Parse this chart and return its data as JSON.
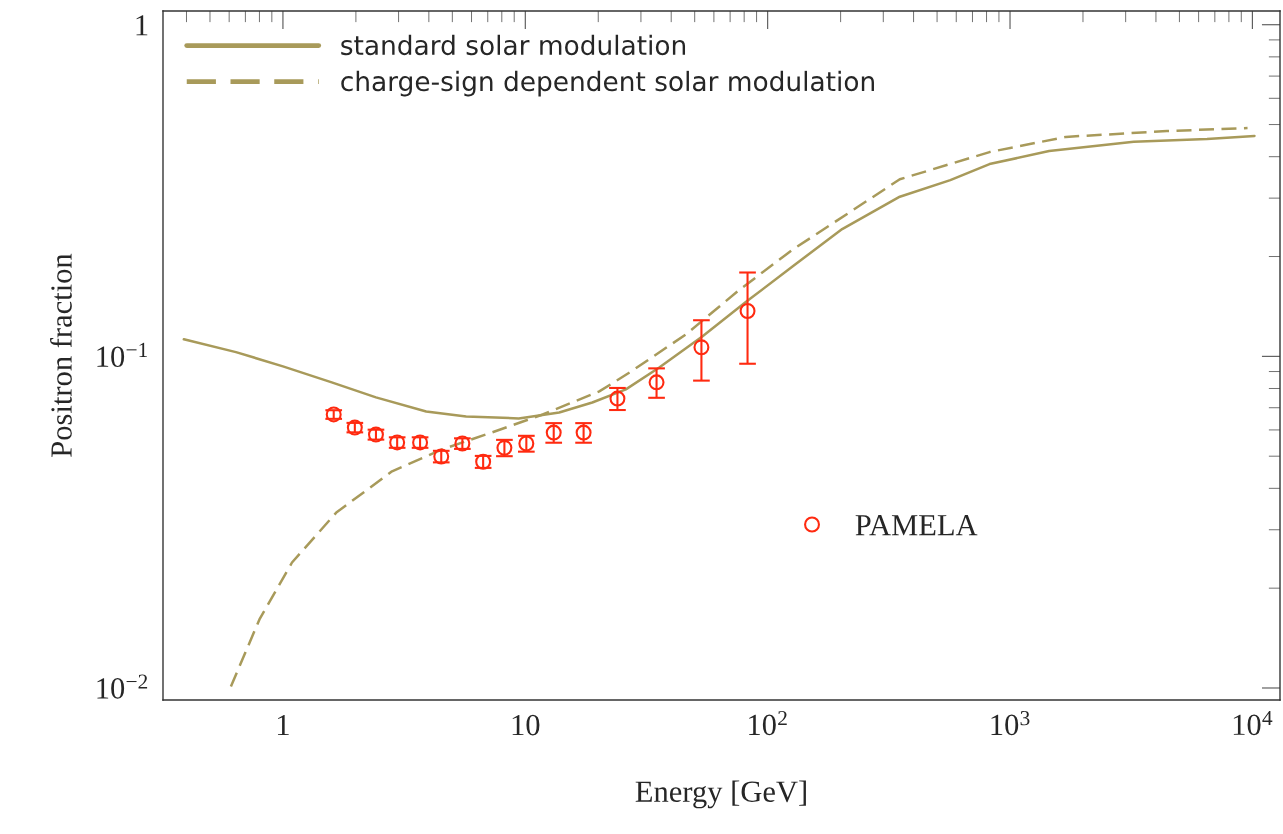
{
  "chart_data": {
    "type": "line",
    "xlabel": "Energy [GeV]",
    "ylabel": "Positron fraction",
    "log": "xy",
    "grid": false,
    "legend": "top left",
    "xlim": [
      0.32,
      13000
    ],
    "ylim": [
      0.0092,
      1.1
    ],
    "xticks": [
      {
        "value": 0.4,
        "label": null
      },
      {
        "value": 0.5,
        "label": null
      },
      {
        "value": 0.6,
        "label": null
      },
      {
        "value": 0.7,
        "label": null
      },
      {
        "value": 0.8,
        "label": null
      },
      {
        "value": 0.9,
        "label": null
      },
      1,
      {
        "value": 2,
        "label": null
      },
      {
        "value": 3,
        "label": null
      },
      {
        "value": 4,
        "label": null
      },
      {
        "value": 5,
        "label": null
      },
      {
        "value": 6,
        "label": null
      },
      {
        "value": 7,
        "label": null
      },
      {
        "value": 8,
        "label": null
      },
      {
        "value": 9,
        "label": null
      },
      10,
      {
        "value": 20,
        "label": null
      },
      {
        "value": 30,
        "label": null
      },
      {
        "value": 40,
        "label": null
      },
      {
        "value": 50,
        "label": null
      },
      {
        "value": 60,
        "label": null
      },
      {
        "value": 70,
        "label": null
      },
      {
        "value": 80,
        "label": null
      },
      {
        "value": 90,
        "label": null
      },
      {
        "value": 100,
        "label": "10$^{2}$"
      },
      {
        "value": 200,
        "label": null
      },
      {
        "value": 300,
        "label": null
      },
      {
        "value": 400,
        "label": null
      },
      {
        "value": 500,
        "label": null
      },
      {
        "value": 600,
        "label": null
      },
      {
        "value": 700,
        "label": null
      },
      {
        "value": 800,
        "label": null
      },
      {
        "value": 900,
        "label": null
      },
      {
        "value": 1000,
        "label": "10$^{3}$"
      },
      {
        "value": 2000,
        "label": null
      },
      {
        "value": 3000,
        "label": null
      },
      {
        "value": 4000,
        "label": null
      },
      {
        "value": 5000,
        "label": null
      },
      {
        "value": 6000,
        "label": null
      },
      {
        "value": 7000,
        "label": null
      },
      {
        "value": 8000,
        "label": null
      },
      {
        "value": 9000,
        "label": null
      },
      {
        "value": 10000,
        "label": "10$^{4}$"
      }
    ],
    "yticks": [
      {
        "value": 0.01,
        "label": "10$^{−2}$"
      },
      {
        "value": 0.02,
        "label": null
      },
      {
        "value": 0.03,
        "label": null
      },
      {
        "value": 0.04,
        "label": null
      },
      {
        "value": 0.05,
        "label": null
      },
      {
        "value": 0.06,
        "label": null
      },
      {
        "value": 0.07,
        "label": null
      },
      {
        "value": 0.08,
        "label": null
      },
      {
        "value": 0.09,
        "label": null
      },
      {
        "value": 0.1,
        "label": "10$^{−1}$"
      },
      {
        "value": 0.2,
        "label": null
      },
      {
        "value": 0.3,
        "label": null
      },
      {
        "value": 0.4,
        "label": null
      },
      {
        "value": 0.5,
        "label": null
      },
      {
        "value": 0.6,
        "label": null
      },
      {
        "value": 0.7,
        "label": null
      },
      {
        "value": 0.8,
        "label": null
      },
      {
        "value": 0.9,
        "label": null
      },
      1
    ],
    "series": [
      {
        "name": "standard solar modulation",
        "line_style": "solid",
        "marker": "none",
        "color": "#a89a5a",
        "x": [
          0.39,
          0.64,
          1.0,
          1.59,
          2.42,
          3.9,
          5.7,
          9.4,
          13.8,
          18.9,
          26,
          35.7,
          53.9,
          81.5,
          127,
          203,
          351,
          567,
          823,
          1450,
          3240,
          6500,
          10200
        ],
        "values": [
          0.1126,
          0.103,
          0.0933,
          0.0835,
          0.0752,
          0.0682,
          0.0659,
          0.065,
          0.0677,
          0.0726,
          0.0795,
          0.0926,
          0.115,
          0.146,
          0.187,
          0.242,
          0.303,
          0.34,
          0.38,
          0.416,
          0.444,
          0.452,
          0.462
        ]
      },
      {
        "name": "charge-sign dependent solar modulation",
        "line_style": "dashed",
        "marker": "none",
        "color": "#a89a5a",
        "x": [
          0.61,
          0.8,
          1.09,
          1.66,
          2.82,
          4.54,
          7.3,
          11.8,
          20.2,
          27,
          46,
          76.7,
          127,
          218,
          351,
          823,
          1700,
          4440,
          9550
        ],
        "values": [
          0.0101,
          0.0161,
          0.0239,
          0.0338,
          0.045,
          0.0524,
          0.059,
          0.0668,
          0.0784,
          0.0895,
          0.1165,
          0.159,
          0.21,
          0.272,
          0.342,
          0.413,
          0.459,
          0.478,
          0.488
        ]
      },
      {
        "name": "PAMELA",
        "type": "scatter",
        "marker": "circle",
        "color": "#ff2a10",
        "x": [
          1.62,
          1.98,
          2.42,
          2.96,
          3.68,
          4.5,
          5.5,
          6.7,
          8.2,
          10.1,
          13.1,
          17.4,
          24,
          34.8,
          53.3,
          82.6
        ],
        "values": [
          0.0668,
          0.061,
          0.0581,
          0.055,
          0.055,
          0.0499,
          0.0546,
          0.0481,
          0.053,
          0.0546,
          0.0589,
          0.0589,
          0.0746,
          0.0835,
          0.1065,
          0.137
        ],
        "errors": [
          0.002,
          0.002,
          0.002,
          0.002,
          0.002,
          0.002,
          0.002,
          0.002,
          0.003,
          0.003,
          0.004,
          0.004,
          0.0057,
          0.0085,
          0.022,
          0.042
        ]
      }
    ]
  }
}
